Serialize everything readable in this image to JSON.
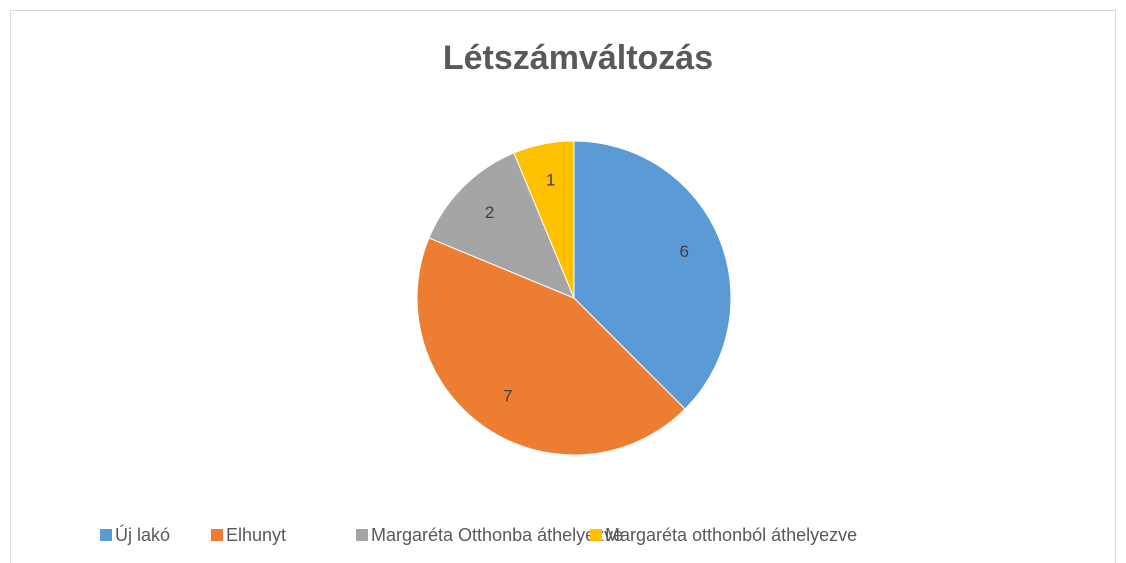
{
  "chart_data": {
    "type": "pie",
    "title": "Létszámváltozás",
    "categories": [
      "Új lakó",
      "Elhunyt",
      "Margaréta Otthonba áthelyezve",
      "Margaréta otthonból áthelyezve"
    ],
    "values": [
      6,
      7,
      2,
      1
    ],
    "colors": [
      "#5b9bd5",
      "#ed7d31",
      "#a5a5a5",
      "#ffc000"
    ],
    "legend": "bottom"
  }
}
